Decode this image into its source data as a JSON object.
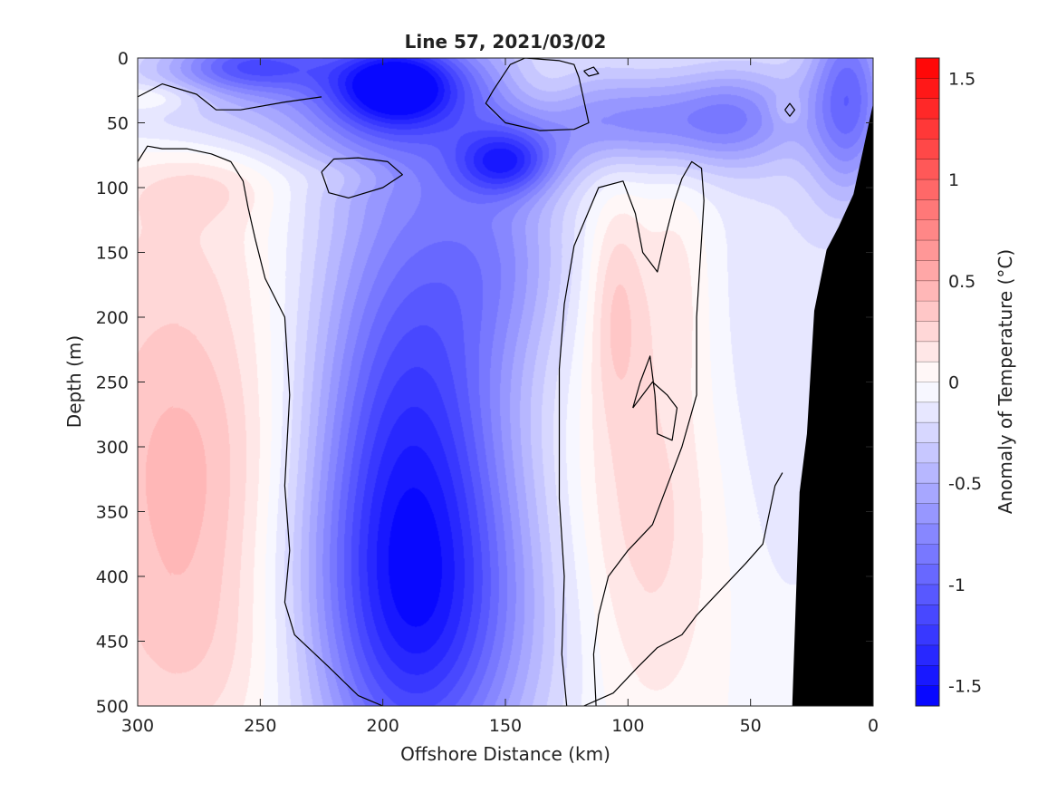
{
  "chart_data": {
    "type": "heatmap",
    "title": "Line 57, 2021/03/02",
    "xlabel": "Offshore Distance (km)",
    "ylabel": "Depth (m)",
    "xlim": [
      300,
      0
    ],
    "ylim": [
      500,
      0
    ],
    "x_direction": "reversed",
    "y_direction": "reversed",
    "xticks": [
      300,
      250,
      200,
      150,
      100,
      50,
      0
    ],
    "yticks": [
      0,
      50,
      100,
      150,
      200,
      250,
      300,
      350,
      400,
      450,
      500
    ],
    "colorbar": {
      "label": "Anomaly of Temperature (°C)",
      "range": [
        -1.6,
        1.6
      ],
      "ticks": [
        -1.5,
        -1,
        -0.5,
        0,
        0.5,
        1,
        1.5
      ],
      "tick_labels": [
        "-1.5",
        "-1",
        "-0.5",
        "0",
        "0.5",
        "1",
        "1.5"
      ],
      "levels": 32,
      "colors": {
        "negative": "#0000ff",
        "zero": "#ffffff",
        "positive": "#ff0000"
      },
      "placement": "right"
    },
    "contour_levels": [
      0
    ],
    "land_color": "#000000",
    "bathymetry": [
      {
        "x": 0,
        "depth": 35
      },
      {
        "x": 4,
        "depth": 70
      },
      {
        "x": 8,
        "depth": 105
      },
      {
        "x": 14,
        "depth": 130
      },
      {
        "x": 19,
        "depth": 148
      },
      {
        "x": 24,
        "depth": 195
      },
      {
        "x": 27,
        "depth": 290
      },
      {
        "x": 30,
        "depth": 335
      },
      {
        "x": 33,
        "depth": 500
      }
    ],
    "anomalies": [
      {
        "x": 190,
        "depth": 350,
        "value": -0.9,
        "sx": 28,
        "sy": 160
      },
      {
        "x": 185,
        "depth": 210,
        "value": -0.45,
        "sx": 35,
        "sy": 180
      },
      {
        "x": 180,
        "depth": 440,
        "value": -0.55,
        "sx": 40,
        "sy": 90
      },
      {
        "x": 220,
        "depth": 30,
        "value": -0.55,
        "sx": 80,
        "sy": 40
      },
      {
        "x": 195,
        "depth": 20,
        "value": -1.05,
        "sx": 18,
        "sy": 22
      },
      {
        "x": 255,
        "depth": 5,
        "value": -0.75,
        "sx": 22,
        "sy": 15
      },
      {
        "x": 150,
        "depth": 80,
        "value": -0.8,
        "sx": 14,
        "sy": 18
      },
      {
        "x": 150,
        "depth": 150,
        "value": -0.35,
        "sx": 20,
        "sy": 60
      },
      {
        "x": 95,
        "depth": 50,
        "value": -0.55,
        "sx": 30,
        "sy": 25
      },
      {
        "x": 55,
        "depth": 45,
        "value": -0.45,
        "sx": 18,
        "sy": 28
      },
      {
        "x": 10,
        "depth": 30,
        "value": -0.9,
        "sx": 12,
        "sy": 55
      },
      {
        "x": 40,
        "depth": 220,
        "value": -0.2,
        "sx": 25,
        "sy": 180
      },
      {
        "x": 280,
        "depth": 340,
        "value": 0.35,
        "sx": 30,
        "sy": 90
      },
      {
        "x": 285,
        "depth": 180,
        "value": 0.2,
        "sx": 40,
        "sy": 130
      },
      {
        "x": 275,
        "depth": 470,
        "value": 0.2,
        "sx": 35,
        "sy": 60
      },
      {
        "x": 295,
        "depth": 30,
        "value": 0.25,
        "sx": 15,
        "sy": 8
      },
      {
        "x": 270,
        "depth": 95,
        "value": 0.2,
        "sx": 25,
        "sy": 20
      },
      {
        "x": 215,
        "depth": 90,
        "value": 0.12,
        "sx": 15,
        "sy": 10
      },
      {
        "x": 135,
        "depth": 20,
        "value": 0.2,
        "sx": 12,
        "sy": 20
      },
      {
        "x": 95,
        "depth": 360,
        "value": 0.3,
        "sx": 25,
        "sy": 110
      },
      {
        "x": 105,
        "depth": 190,
        "value": 0.3,
        "sx": 8,
        "sy": 60
      },
      {
        "x": 80,
        "depth": 170,
        "value": 0.15,
        "sx": 10,
        "sy": 60
      },
      {
        "x": 35,
        "depth": 40,
        "value": 0.15,
        "sx": 5,
        "sy": 8
      }
    ],
    "zero_contours": [
      [
        [
          300,
          80
        ],
        [
          296,
          68
        ],
        [
          290,
          70
        ],
        [
          280,
          70
        ],
        [
          270,
          74
        ],
        [
          262,
          80
        ],
        [
          257,
          95
        ],
        [
          255,
          115
        ],
        [
          252,
          140
        ],
        [
          248,
          170
        ],
        [
          240,
          200
        ],
        [
          238,
          260
        ],
        [
          240,
          330
        ],
        [
          238,
          380
        ],
        [
          240,
          420
        ],
        [
          236,
          445
        ],
        [
          222,
          470
        ],
        [
          210,
          492
        ],
        [
          200,
          500
        ]
      ],
      [
        [
          300,
          30
        ],
        [
          290,
          20
        ],
        [
          276,
          28
        ],
        [
          268,
          40
        ],
        [
          258,
          40
        ],
        [
          240,
          34
        ],
        [
          225,
          30
        ]
      ],
      [
        [
          225,
          88
        ],
        [
          220,
          78
        ],
        [
          210,
          77
        ],
        [
          198,
          80
        ],
        [
          192,
          90
        ],
        [
          200,
          100
        ],
        [
          214,
          108
        ],
        [
          222,
          104
        ],
        [
          225,
          88
        ]
      ],
      [
        [
          155,
          25
        ],
        [
          148,
          5
        ],
        [
          142,
          0
        ],
        [
          128,
          2
        ],
        [
          122,
          5
        ],
        [
          120,
          15
        ],
        [
          116,
          50
        ],
        [
          122,
          55
        ],
        [
          136,
          56
        ],
        [
          150,
          50
        ],
        [
          158,
          35
        ],
        [
          155,
          25
        ]
      ],
      [
        [
          118,
          10
        ],
        [
          114,
          7
        ],
        [
          112,
          12
        ],
        [
          116,
          14
        ],
        [
          118,
          10
        ]
      ],
      [
        [
          36,
          40
        ],
        [
          34,
          45
        ],
        [
          32,
          40
        ],
        [
          34,
          35
        ],
        [
          36,
          40
        ]
      ],
      [
        [
          125,
          500
        ],
        [
          127,
          460
        ],
        [
          126,
          400
        ],
        [
          128,
          340
        ],
        [
          128,
          240
        ],
        [
          126,
          190
        ],
        [
          122,
          145
        ],
        [
          112,
          100
        ],
        [
          102,
          95
        ],
        [
          97,
          120
        ],
        [
          94,
          150
        ],
        [
          88,
          165
        ],
        [
          85,
          140
        ],
        [
          81,
          110
        ],
        [
          78,
          93
        ],
        [
          74,
          80
        ],
        [
          70,
          85
        ],
        [
          69,
          110
        ],
        [
          72,
          200
        ],
        [
          72,
          260
        ],
        [
          78,
          300
        ],
        [
          86,
          340
        ],
        [
          90,
          360
        ],
        [
          100,
          380
        ],
        [
          108,
          400
        ],
        [
          112,
          430
        ],
        [
          114,
          460
        ],
        [
          113,
          500
        ]
      ],
      [
        [
          98,
          270
        ],
        [
          95,
          250
        ],
        [
          91,
          230
        ],
        [
          89,
          260
        ],
        [
          88,
          290
        ],
        [
          82,
          295
        ],
        [
          80,
          270
        ],
        [
          84,
          260
        ],
        [
          90,
          250
        ],
        [
          98,
          270
        ]
      ],
      [
        [
          118,
          500
        ],
        [
          106,
          490
        ],
        [
          96,
          470
        ],
        [
          88,
          455
        ],
        [
          78,
          445
        ],
        [
          72,
          430
        ],
        [
          62,
          410
        ],
        [
          52,
          390
        ],
        [
          45,
          375
        ],
        [
          40,
          330
        ],
        [
          37,
          320
        ]
      ]
    ]
  }
}
